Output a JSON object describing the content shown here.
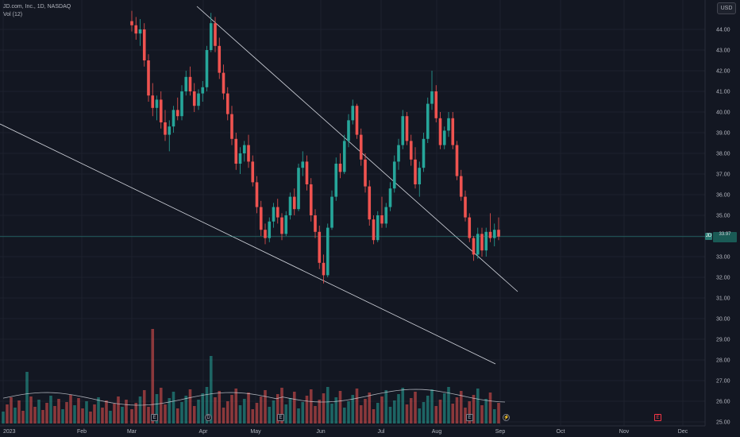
{
  "legend": {
    "symbol": "JD.com, Inc., 1D, NASDAQ",
    "volume_label": "Vol (12)"
  },
  "currency": "USD",
  "last_price": {
    "value": "33.97",
    "sub": "",
    "badge": "JD"
  },
  "price_axis": [
    "44.00",
    "43.00",
    "42.00",
    "41.00",
    "40.00",
    "39.00",
    "38.00",
    "37.00",
    "36.00",
    "35.00",
    "34.00",
    "33.00",
    "32.00",
    "31.00",
    "30.00",
    "29.00",
    "28.00",
    "27.00",
    "26.00",
    "25.00"
  ],
  "time_axis": [
    "2023",
    "Feb",
    "Mar",
    "Apr",
    "May",
    "Jun",
    "Jul",
    "Aug",
    "Sep",
    "Oct",
    "Nov",
    "Dec"
  ],
  "events": [
    {
      "icon": "E",
      "kind": "earnings"
    },
    {
      "icon": "D",
      "kind": "dividend"
    },
    {
      "icon": "E",
      "kind": "earnings"
    },
    {
      "icon": "E",
      "kind": "earnings"
    },
    {
      "icon": "⚡",
      "kind": "split"
    },
    {
      "icon": "E",
      "kind": "earnings-upcoming"
    }
  ],
  "colors": {
    "up": "#26a69a",
    "down": "#ef5350",
    "background": "#131722",
    "grid": "#1e222d",
    "trendline": "#d1d4dc"
  },
  "chart_data": {
    "type": "candlestick",
    "title": "JD.com, Inc., 1D, NASDAQ",
    "ylim": [
      25,
      45
    ],
    "xlabel": "",
    "ylabel": "",
    "last_close": 33.97,
    "candles_approx": [
      [
        44.4,
        44.9,
        43.9,
        44.2
      ],
      [
        44.2,
        44.6,
        43.5,
        43.8
      ],
      [
        43.8,
        44.5,
        43.2,
        44.0
      ],
      [
        44.0,
        44.3,
        42.2,
        42.5
      ],
      [
        42.5,
        42.8,
        40.5,
        40.8
      ],
      [
        40.8,
        41.4,
        39.8,
        40.2
      ],
      [
        40.2,
        40.8,
        39.6,
        40.6
      ],
      [
        40.6,
        41.0,
        39.2,
        39.5
      ],
      [
        39.5,
        40.1,
        38.6,
        38.9
      ],
      [
        38.9,
        39.6,
        38.1,
        39.3
      ],
      [
        39.3,
        40.3,
        39.0,
        40.1
      ],
      [
        40.1,
        40.7,
        39.6,
        39.8
      ],
      [
        39.8,
        41.3,
        39.6,
        41.0
      ],
      [
        41.0,
        42.0,
        40.8,
        41.7
      ],
      [
        41.7,
        42.2,
        40.8,
        41.0
      ],
      [
        41.0,
        41.4,
        40.0,
        40.3
      ],
      [
        40.3,
        41.1,
        40.1,
        40.9
      ],
      [
        40.9,
        41.5,
        40.5,
        41.2
      ],
      [
        41.2,
        43.2,
        41.0,
        43.0
      ],
      [
        43.0,
        44.8,
        42.9,
        44.3
      ],
      [
        44.3,
        44.6,
        42.9,
        43.2
      ],
      [
        43.2,
        43.6,
        41.6,
        41.9
      ],
      [
        41.9,
        42.3,
        40.6,
        40.9
      ],
      [
        40.9,
        41.2,
        39.6,
        39.9
      ],
      [
        39.9,
        40.3,
        38.4,
        38.7
      ],
      [
        38.7,
        39.0,
        37.2,
        37.5
      ],
      [
        37.5,
        38.3,
        37.0,
        38.0
      ],
      [
        38.0,
        38.6,
        37.6,
        38.4
      ],
      [
        38.4,
        38.9,
        37.3,
        37.6
      ],
      [
        37.6,
        37.9,
        36.4,
        36.6
      ],
      [
        36.6,
        36.9,
        35.1,
        35.4
      ],
      [
        35.4,
        35.7,
        34.0,
        34.3
      ],
      [
        34.3,
        34.6,
        33.6,
        33.9
      ],
      [
        33.9,
        34.9,
        33.7,
        34.7
      ],
      [
        34.7,
        35.6,
        34.4,
        35.4
      ],
      [
        35.4,
        35.8,
        34.6,
        34.9
      ],
      [
        34.9,
        35.1,
        33.8,
        34.1
      ],
      [
        34.1,
        35.2,
        34.0,
        35.0
      ],
      [
        35.0,
        36.1,
        34.8,
        35.9
      ],
      [
        35.9,
        36.3,
        35.0,
        35.3
      ],
      [
        35.3,
        37.5,
        35.2,
        37.3
      ],
      [
        37.3,
        38.1,
        36.9,
        37.6
      ],
      [
        37.6,
        37.9,
        36.2,
        36.5
      ],
      [
        36.5,
        36.8,
        34.7,
        35.0
      ],
      [
        35.0,
        35.3,
        33.9,
        34.2
      ],
      [
        34.2,
        34.5,
        32.4,
        32.7
      ],
      [
        32.7,
        33.1,
        31.7,
        32.1
      ],
      [
        32.1,
        34.6,
        32.0,
        34.4
      ],
      [
        34.4,
        36.2,
        34.3,
        35.9
      ],
      [
        35.9,
        37.8,
        35.7,
        37.5
      ],
      [
        37.5,
        38.0,
        36.8,
        37.1
      ],
      [
        37.1,
        38.9,
        37.0,
        38.6
      ],
      [
        38.6,
        39.9,
        38.3,
        39.6
      ],
      [
        39.6,
        40.6,
        39.4,
        40.3
      ],
      [
        40.3,
        40.4,
        38.7,
        38.9
      ],
      [
        38.9,
        39.2,
        37.4,
        37.7
      ],
      [
        37.7,
        38.0,
        36.1,
        36.4
      ],
      [
        36.4,
        36.7,
        34.5,
        34.8
      ],
      [
        34.8,
        35.0,
        33.6,
        33.8
      ],
      [
        33.8,
        35.2,
        33.7,
        35.0
      ],
      [
        35.0,
        35.9,
        34.4,
        34.6
      ],
      [
        34.6,
        35.6,
        34.4,
        35.4
      ],
      [
        35.4,
        36.6,
        35.2,
        36.3
      ],
      [
        36.3,
        37.9,
        36.1,
        37.6
      ],
      [
        37.6,
        38.7,
        37.2,
        38.4
      ],
      [
        38.4,
        40.1,
        38.2,
        39.8
      ],
      [
        39.8,
        40.0,
        38.4,
        38.6
      ],
      [
        38.6,
        38.9,
        37.4,
        37.7
      ],
      [
        37.7,
        38.3,
        36.3,
        36.5
      ],
      [
        36.5,
        37.6,
        35.9,
        37.3
      ],
      [
        37.3,
        39.0,
        37.1,
        38.7
      ],
      [
        38.7,
        40.7,
        38.5,
        40.4
      ],
      [
        40.4,
        42.0,
        40.1,
        41.0
      ],
      [
        41.0,
        41.3,
        39.5,
        39.7
      ],
      [
        39.7,
        40.0,
        38.2,
        38.4
      ],
      [
        38.4,
        39.3,
        38.2,
        39.1
      ],
      [
        39.1,
        40.0,
        38.8,
        39.7
      ],
      [
        39.7,
        40.0,
        38.2,
        38.4
      ],
      [
        38.4,
        38.6,
        36.7,
        36.9
      ],
      [
        36.9,
        37.2,
        35.7,
        35.9
      ],
      [
        35.9,
        36.2,
        34.7,
        34.9
      ],
      [
        34.9,
        35.1,
        33.7,
        33.9
      ],
      [
        33.9,
        34.0,
        32.8,
        33.1
      ],
      [
        33.1,
        34.4,
        32.9,
        34.1
      ],
      [
        34.1,
        34.4,
        33.0,
        33.3
      ],
      [
        33.3,
        34.4,
        33.0,
        34.2
      ],
      [
        34.2,
        35.1,
        33.7,
        33.9
      ],
      [
        33.9,
        34.6,
        33.5,
        34.3
      ],
      [
        34.3,
        34.9,
        33.8,
        33.97
      ]
    ]
  }
}
